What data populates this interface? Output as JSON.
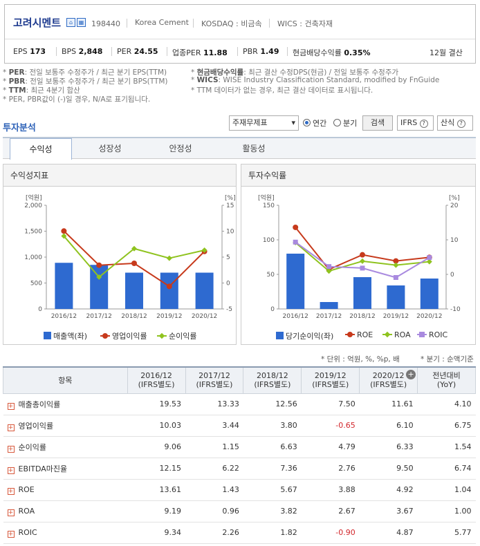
{
  "header": {
    "company_name": "고려시멘트",
    "code": "198440",
    "market1": "Korea Cement",
    "market2": "KOSDAQ : 비금속",
    "wics": "WICS : 건축자재",
    "stats": [
      {
        "label": "EPS",
        "value": "173"
      },
      {
        "label": "BPS",
        "value": "2,848"
      },
      {
        "label": "PER",
        "value": "24.55"
      },
      {
        "label": "업종PER",
        "value": "11.88"
      },
      {
        "label": "PBR",
        "value": "1.49"
      },
      {
        "label": "현금배당수익률",
        "value": "0.35%"
      }
    ],
    "settle": "12월 결산"
  },
  "notes": {
    "per": {
      "key": "PER",
      "text": ": 전일 보통주 수정주가 / 최근 분기 EPS(TTM)"
    },
    "pbr": {
      "key": "PBR",
      "text": ": 전일 보통주 수정주가 / 최근 분기 BPS(TTM)"
    },
    "ttm": {
      "key": "TTM",
      "text": ": 최근 4분기 합산"
    },
    "na": "* PER, PBR값이 (-)일 경우, N/A로 표기됩니다.",
    "div": {
      "key": "현금배당수익률",
      "text": ": 최근 결산 수정DPS(현금) / 전일 보통주 수정주가"
    },
    "wics": {
      "key": "WICS",
      "text": ": WISE Industry Classification Standard, modified by FnGuide"
    },
    "ttm2": "* TTM 데이터가 없는 경우, 최근 결산 데이터로 표시됩니다."
  },
  "controls": {
    "section_title": "투자분석",
    "select_value": "주재무제표",
    "radio_annual": "연간",
    "radio_quarter": "분기",
    "search": "검색",
    "ifrs": "IFRS",
    "formula": "산식"
  },
  "tabs": [
    "수익성",
    "성장성",
    "안정성",
    "활동성"
  ],
  "chart1": {
    "title": "수익성지표",
    "left_unit": "[억원]",
    "right_unit": "[%]",
    "left_ticks": [
      "2,000",
      "1,500",
      "1,000",
      "500",
      "0"
    ],
    "right_ticks": [
      "15",
      "10",
      "5",
      "0",
      "-5"
    ],
    "legend": [
      "매출액(좌)",
      "영업이익률",
      "순이익률"
    ]
  },
  "chart2": {
    "title": "투자수익률",
    "left_unit": "[억원]",
    "right_unit": "[%]",
    "left_ticks": [
      "150",
      "100",
      "50",
      "0"
    ],
    "right_ticks": [
      "20",
      "10",
      "0",
      "-10"
    ],
    "legend": [
      "당기순이익(좌)",
      "ROE",
      "ROA",
      "ROIC"
    ]
  },
  "chart_data": [
    {
      "type": "bar",
      "title": "수익성지표",
      "categories": [
        "2016/12",
        "2017/12",
        "2018/12",
        "2019/12",
        "2020/12"
      ],
      "ylim": [
        0,
        2000
      ],
      "y2lim": [
        -5,
        15
      ],
      "series": [
        {
          "name": "매출액(좌)",
          "axis": "left",
          "type": "bar",
          "values": [
            890,
            850,
            700,
            700,
            700
          ],
          "color": "#2e6ad0"
        },
        {
          "name": "영업이익률",
          "axis": "right",
          "type": "line",
          "values": [
            10.03,
            3.44,
            3.8,
            -0.65,
            6.1
          ],
          "color": "#c73a1c"
        },
        {
          "name": "순이익률",
          "axis": "right",
          "type": "line",
          "values": [
            9.06,
            1.15,
            6.63,
            4.79,
            6.33
          ],
          "color": "#8fc31f"
        }
      ]
    },
    {
      "type": "bar",
      "title": "투자수익률",
      "categories": [
        "2016/12",
        "2017/12",
        "2018/12",
        "2019/12",
        "2020/12"
      ],
      "ylim": [
        0,
        150
      ],
      "y2lim": [
        -10,
        20
      ],
      "series": [
        {
          "name": "당기순이익(좌)",
          "axis": "left",
          "type": "bar",
          "values": [
            80,
            10,
            46,
            34,
            44
          ],
          "color": "#2e6ad0"
        },
        {
          "name": "ROE",
          "axis": "right",
          "type": "line",
          "values": [
            13.61,
            1.43,
            5.67,
            3.88,
            4.92
          ],
          "color": "#c73a1c"
        },
        {
          "name": "ROA",
          "axis": "right",
          "type": "line",
          "values": [
            9.19,
            0.96,
            3.82,
            2.67,
            3.67
          ],
          "color": "#8fc31f"
        },
        {
          "name": "ROIC",
          "axis": "right",
          "type": "line",
          "values": [
            9.34,
            2.26,
            1.82,
            -0.9,
            4.87
          ],
          "color": "#a98adf"
        }
      ]
    }
  ],
  "table": {
    "unit_note": "* 단위 : 억원, %, %p, 배",
    "quarter_note": "* 분기 : 순액기준",
    "headers": [
      "항목",
      "2016/12\n(IFRS별도)",
      "2017/12\n(IFRS별도)",
      "2018/12\n(IFRS별도)",
      "2019/12\n(IFRS별도)",
      "2020/12\n(IFRS별도)",
      "전년대비\n(YoY)"
    ],
    "rows": [
      {
        "name": "매출총이익률",
        "values": [
          "19.53",
          "13.33",
          "12.56",
          "7.50",
          "11.61",
          "4.10"
        ]
      },
      {
        "name": "영업이익률",
        "values": [
          "10.03",
          "3.44",
          "3.80",
          "-0.65",
          "6.10",
          "6.75"
        ]
      },
      {
        "name": "순이익률",
        "values": [
          "9.06",
          "1.15",
          "6.63",
          "4.79",
          "6.33",
          "1.54"
        ]
      },
      {
        "name": "EBITDA마진율",
        "values": [
          "12.15",
          "6.22",
          "7.36",
          "2.76",
          "9.50",
          "6.74"
        ]
      },
      {
        "name": "ROE",
        "values": [
          "13.61",
          "1.43",
          "5.67",
          "3.88",
          "4.92",
          "1.04"
        ]
      },
      {
        "name": "ROA",
        "values": [
          "9.19",
          "0.96",
          "3.82",
          "2.67",
          "3.67",
          "1.00"
        ]
      },
      {
        "name": "ROIC",
        "values": [
          "9.34",
          "2.26",
          "1.82",
          "-0.90",
          "4.87",
          "5.77"
        ]
      }
    ]
  }
}
